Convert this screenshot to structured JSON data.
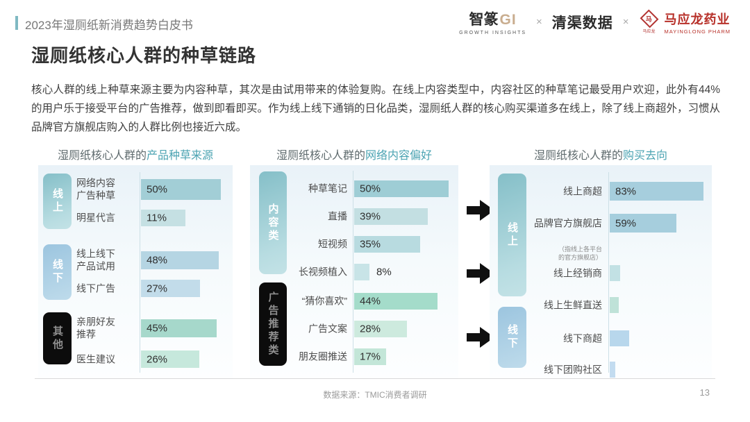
{
  "header": {
    "eyebrow": "2023年湿厕纸新消费趋势白皮书",
    "title": "湿厕纸核心人群的种草链路",
    "paragraph": "核心人群的线上种草来源主要为内容种草，其次是由试用带来的体验复购。在线上内容类型中，内容社区的种草笔记最受用户欢迎，此外有44%的用户乐于接受平台的广告推荐，做到即看即买。作为线上线下通销的日化品类，湿厕纸人群的核心购买渠道多在线上，除了线上商超外，习惯从品牌官方旗舰店购入的人群比例也接近六成。"
  },
  "logos": {
    "zhizhuan": {
      "name": "智篆",
      "suffix": "GI",
      "tagline": "GROWTH  INSIGHTS"
    },
    "separator": "×",
    "qingqu": "清渠数据",
    "mayinglong": {
      "seal_char": "马",
      "seal_caption": "马应龙",
      "name": "马应龙药业",
      "tagline": "MAYINGLONG PHARM"
    }
  },
  "footer": {
    "source": "数据来源：TMIC消费者调研",
    "page": "13"
  },
  "colors": {
    "accent_teal": "#4ba3b2",
    "underline": "#86c3cd",
    "arrow": "#101010"
  },
  "charts": [
    {
      "title_prefix": "湿厕纸核心人群的",
      "title_highlight": "产品种草来源",
      "groups": [
        {
          "label": "线上"
        },
        {
          "label": "线下"
        },
        {
          "label": "其他"
        }
      ],
      "rows": [
        {
          "lines": [
            "网络内容",
            "广告种草"
          ],
          "value": 50,
          "value_label": "50%",
          "color": "#a2ced6"
        },
        {
          "lines": [
            "明星代言"
          ],
          "value": 11,
          "value_label": "11%",
          "color": "#c5e0e3"
        },
        {
          "lines": [
            "线上线下",
            "产品试用"
          ],
          "value": 48,
          "value_label": "48%",
          "color": "#b5d5e3"
        },
        {
          "lines": [
            "线下广告"
          ],
          "value": 27,
          "value_label": "27%",
          "color": "#c2dcea"
        },
        {
          "lines": [
            "亲朋好友",
            "推荐"
          ],
          "value": 45,
          "value_label": "45%",
          "color": "#a6d8cb"
        },
        {
          "lines": [
            "医生建议"
          ],
          "value": 26,
          "value_label": "26%",
          "color": "#c6e8dc"
        }
      ]
    },
    {
      "title_prefix": "湿厕纸核心人群的",
      "title_highlight": "网络内容偏好",
      "groups": [
        {
          "label": "内容类"
        },
        {
          "label": "广告推荐类"
        }
      ],
      "rows": [
        {
          "lines": [
            "种草笔记"
          ],
          "value": 50,
          "value_label": "50%",
          "color": "#9ecdd5"
        },
        {
          "lines": [
            "直播"
          ],
          "value": 39,
          "value_label": "39%",
          "color": "#c3dfe2"
        },
        {
          "lines": [
            "短视频"
          ],
          "value": 35,
          "value_label": "35%",
          "color": "#b8dbe0"
        },
        {
          "lines": [
            "长视频植入"
          ],
          "value": 8,
          "value_label": "8%",
          "color": "#c8e4e7"
        },
        {
          "lines": [
            "“猜你喜欢”"
          ],
          "value": 44,
          "value_label": "44%",
          "color": "#a4dcca"
        },
        {
          "lines": [
            "广告文案"
          ],
          "value": 28,
          "value_label": "28%",
          "color": "#cdeade"
        },
        {
          "lines": [
            "朋友圈推送"
          ],
          "value": 17,
          "value_label": "17%",
          "color": "#c3e6d8"
        }
      ]
    },
    {
      "title_prefix": "湿厕纸核心人群的",
      "title_highlight": "购买去向",
      "groups": [
        {
          "label": "线上"
        },
        {
          "label": "线下"
        }
      ],
      "note_lines": [
        "（指线上各平台",
        "的官方旗舰店）"
      ],
      "rows": [
        {
          "lines": [
            "线上商超"
          ],
          "value": 83,
          "value_label": "83%",
          "color": "#a6cedd"
        },
        {
          "lines": [
            "品牌官方旗舰店"
          ],
          "value": 59,
          "value_label": "59%",
          "color": "#a6cedd"
        },
        {
          "lines": [
            "线上经销商"
          ],
          "value": 9,
          "value_label": "",
          "color": "#c2e1e4"
        },
        {
          "lines": [
            "线上生鲜直送"
          ],
          "value": 8,
          "value_label": "",
          "color": "#bfe2d8"
        },
        {
          "lines": [
            "线下商超"
          ],
          "value": 17,
          "value_label": "",
          "color": "#b8d7ec"
        },
        {
          "lines": [
            "线下团购社区"
          ],
          "value": 5,
          "value_label": "",
          "color": "#c3dcf0"
        }
      ]
    }
  ],
  "chart_data": [
    {
      "type": "bar",
      "title": "湿厕纸核心人群的产品种草来源",
      "categories": [
        "网络内容广告种草",
        "明星代言",
        "线上线下产品试用",
        "线下广告",
        "亲朋好友推荐",
        "医生建议"
      ],
      "values": [
        50,
        11,
        48,
        27,
        45,
        26
      ],
      "group_of_category": [
        "线上",
        "线上",
        "线下",
        "线下",
        "其他",
        "其他"
      ],
      "unit": "%",
      "orientation": "horizontal",
      "grid": false,
      "value_labels_shown": [
        true,
        true,
        true,
        true,
        true,
        true
      ]
    },
    {
      "type": "bar",
      "title": "湿厕纸核心人群的网络内容偏好",
      "categories": [
        "种草笔记",
        "直播",
        "短视频",
        "长视频植入",
        "“猜你喜欢”",
        "广告文案",
        "朋友圈推送"
      ],
      "values": [
        50,
        39,
        35,
        8,
        44,
        28,
        17
      ],
      "group_of_category": [
        "内容类",
        "内容类",
        "内容类",
        "内容类",
        "广告推荐类",
        "广告推荐类",
        "广告推荐类"
      ],
      "unit": "%",
      "orientation": "horizontal",
      "grid": false,
      "value_labels_shown": [
        true,
        true,
        true,
        true,
        true,
        true,
        true
      ]
    },
    {
      "type": "bar",
      "title": "湿厕纸核心人群的购买去向",
      "categories": [
        "线上商超",
        "品牌官方旗舰店",
        "线上经销商",
        "线上生鲜直送",
        "线下商超",
        "线下团购社区"
      ],
      "values": [
        83,
        59,
        9,
        8,
        17,
        5
      ],
      "values_estimated_from_bar_length": [
        false,
        false,
        true,
        true,
        true,
        true
      ],
      "group_of_category": [
        "线上",
        "线上",
        "线上",
        "线上",
        "线下",
        "线下"
      ],
      "annotation": "品牌官方旗舰店（指线上各平台的官方旗舰店）",
      "unit": "%",
      "orientation": "horizontal",
      "grid": false,
      "value_labels_shown": [
        true,
        true,
        false,
        false,
        false,
        false
      ]
    }
  ]
}
